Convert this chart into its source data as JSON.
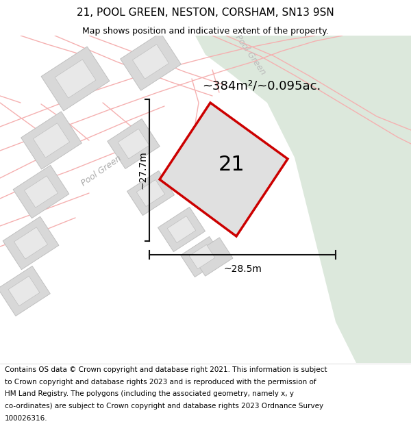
{
  "title": "21, POOL GREEN, NESTON, CORSHAM, SN13 9SN",
  "subtitle": "Map shows position and indicative extent of the property.",
  "area_label": "~384m²/~0.095ac.",
  "dim_vertical": "~27.7m",
  "dim_horizontal": "~28.5m",
  "plot_number": "21",
  "road_label": "Pool Green",
  "copyright_lines": [
    "Contains OS data © Crown copyright and database right 2021. This information is subject",
    "to Crown copyright and database rights 2023 and is reproduced with the permission of",
    "HM Land Registry. The polygons (including the associated geometry, namely x, y",
    "co-ordinates) are subject to Crown copyright and database rights 2023 Ordnance Survey",
    "100026316."
  ],
  "bg_color": "#f2f2f2",
  "green_color": "#dce8dc",
  "road_color": "#f5b0b0",
  "building_fill": "#d8d8d8",
  "building_edge": "#c0c0c0",
  "plot_fill": "#e0e0e0",
  "plot_edge": "#cc0000",
  "dim_color": "#111111",
  "white": "#ffffff"
}
